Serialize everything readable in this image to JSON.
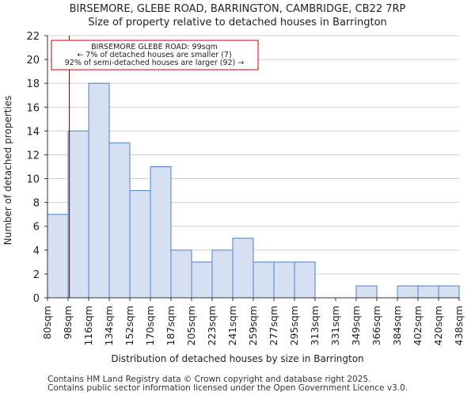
{
  "chart_data": {
    "type": "bar",
    "title": "BIRSEMORE, GLEBE ROAD, BARRINGTON, CAMBRIDGE, CB22 7RP",
    "subtitle": "Size of property relative to detached houses in Barrington",
    "xlabel": "Distribution of detached houses by size in Barrington",
    "ylabel": "Number of detached properties",
    "ylim": [
      0,
      22
    ],
    "yticks": [
      0,
      2,
      4,
      6,
      8,
      10,
      12,
      14,
      16,
      18,
      20,
      22
    ],
    "tick_labels": [
      "80sqm",
      "98sqm",
      "116sqm",
      "134sqm",
      "152sqm",
      "170sqm",
      "187sqm",
      "205sqm",
      "223sqm",
      "241sqm",
      "259sqm",
      "277sqm",
      "295sqm",
      "313sqm",
      "331sqm",
      "349sqm",
      "366sqm",
      "384sqm",
      "402sqm",
      "420sqm",
      "438sqm"
    ],
    "values": [
      7,
      14,
      18,
      13,
      9,
      11,
      4,
      3,
      4,
      5,
      3,
      3,
      3,
      0,
      0,
      1,
      0,
      1,
      1,
      1
    ],
    "marker_position": 1.06,
    "bar_fill": "#d6e0f3",
    "bar_edge": "#4f7ec9",
    "marker_color": "#cc0000",
    "annotation": {
      "line1": "BIRSEMORE GLEBE ROAD: 99sqm",
      "line2": "← 7% of detached houses are smaller (7)",
      "line3": "92% of semi-detached houses are larger (92) →"
    }
  },
  "footer": {
    "line1": "Contains HM Land Registry data © Crown copyright and database right 2025.",
    "line2": "Contains public sector information licensed under the Open Government Licence v3.0."
  }
}
